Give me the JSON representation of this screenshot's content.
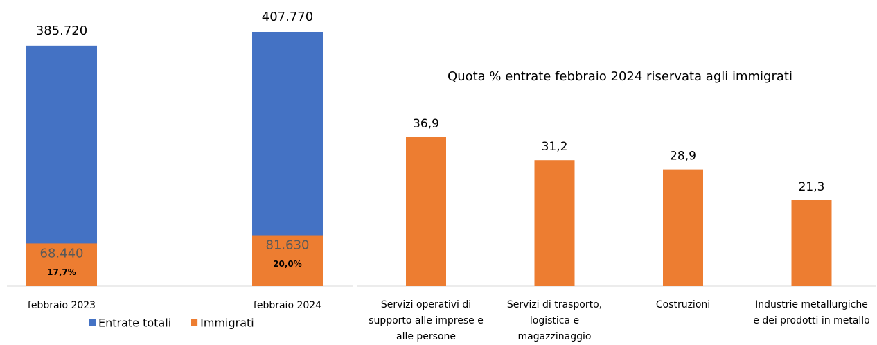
{
  "chart_data": [
    {
      "type": "bar",
      "categories": [
        "febbraio 2023",
        "febbraio 2024"
      ],
      "series": [
        {
          "name": "Entrate totali",
          "color": "#4472c4",
          "values": [
            385720,
            407770
          ],
          "value_labels": [
            "385.720",
            "407.770"
          ]
        },
        {
          "name": "Immigrati",
          "color": "#ed7d31",
          "values": [
            68440,
            81630
          ],
          "value_labels": [
            "68.440",
            "81.630"
          ]
        }
      ],
      "annotations": [
        "17,7%",
        "20,0%"
      ]
    },
    {
      "type": "bar",
      "title": "Quota % entrate febbraio 2024 riservata agli immigrati",
      "categories": [
        "Servizi operativi di supporto alle imprese e alle persone",
        "Servizi di trasporto, logistica e magazzinaggio",
        "Costruzioni",
        "Industrie metallurgiche e dei prodotti in metallo"
      ],
      "values": [
        36.9,
        31.2,
        28.9,
        21.3
      ],
      "value_labels": [
        "36,9",
        "31,2",
        "28,9",
        "21,3"
      ],
      "color": "#ed7d31"
    }
  ]
}
